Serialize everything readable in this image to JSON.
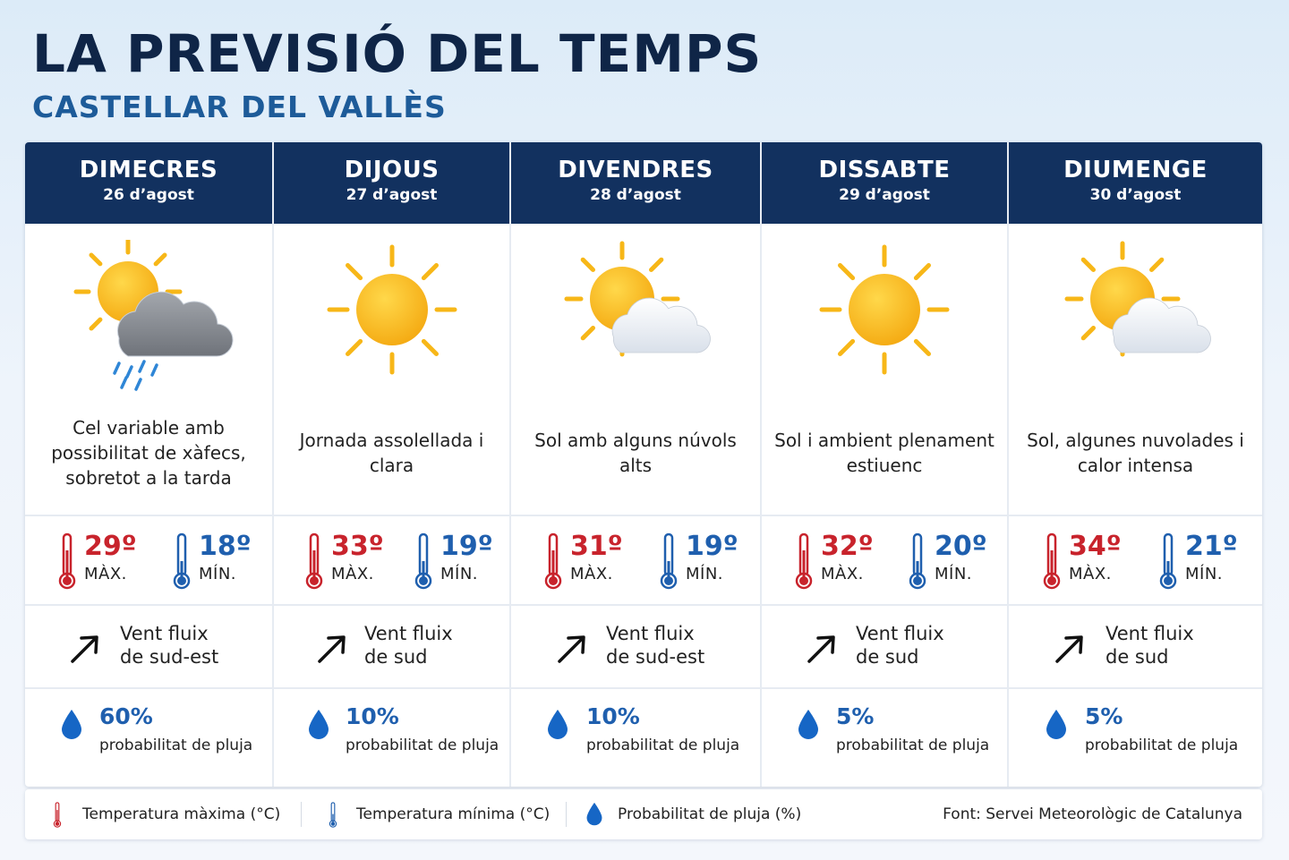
{
  "header": {
    "title": "LA PREVISIÓ DEL TEMPS",
    "subtitle": "CASTELLAR DEL VALLÈS"
  },
  "colors": {
    "header_bg": "#12315f",
    "max_temp": "#c8232c",
    "min_temp": "#1f5fae",
    "rain": "#1f5fae",
    "sun": "#f7b718",
    "cloud_dark": "#8c9097",
    "cloud_light": "#ecf0f5"
  },
  "days": [
    {
      "day": "DIMECRES",
      "date": "26 d’agost",
      "icon": "sun-behind-rain-cloud-icon",
      "description": "Cel variable amb possibilitat de xàfecs, sobretot a la tarda",
      "max": "29º",
      "max_label": "MÀX.",
      "min": "18º",
      "min_label": "MÍN.",
      "wind_line1": "Vent fluix",
      "wind_line2": "de sud-est",
      "rain": "60%",
      "rain_label": "probabilitat de pluja"
    },
    {
      "day": "DIJOUS",
      "date": "27 d’agost",
      "icon": "sun-icon",
      "description": "Jornada assolellada i clara",
      "max": "33º",
      "max_label": "MÀX.",
      "min": "19º",
      "min_label": "MÍN.",
      "wind_line1": "Vent fluix",
      "wind_line2": "de sud",
      "rain": "10%",
      "rain_label": "probabilitat de pluja"
    },
    {
      "day": "DIVENDRES",
      "date": "28 d’agost",
      "icon": "sun-behind-cloud-icon",
      "description": "Sol amb alguns núvols alts",
      "max": "31º",
      "max_label": "MÀX.",
      "min": "19º",
      "min_label": "MÍN.",
      "wind_line1": "Vent fluix",
      "wind_line2": "de sud-est",
      "rain": "10%",
      "rain_label": "probabilitat de pluja"
    },
    {
      "day": "DISSABTE",
      "date": "29 d’agost",
      "icon": "sun-icon",
      "description": "Sol i ambient plenament estiuenc",
      "max": "32º",
      "max_label": "MÀX.",
      "min": "20º",
      "min_label": "MÍN.",
      "wind_line1": "Vent fluix",
      "wind_line2": "de sud",
      "rain": "5%",
      "rain_label": "probabilitat de pluja"
    },
    {
      "day": "DIUMENGE",
      "date": "30 d’agost",
      "icon": "sun-behind-cloud-icon",
      "description": "Sol, algunes nuvolades i calor intensa",
      "max": "34º",
      "max_label": "MÀX.",
      "min": "21º",
      "min_label": "MÍN.",
      "wind_line1": "Vent fluix",
      "wind_line2": "de sud",
      "rain": "5%",
      "rain_label": "probabilitat de pluja"
    }
  ],
  "legend": {
    "max_label": "Temperatura màxima (°C)",
    "min_label": "Temperatura mínima (°C)",
    "rain_label": "Probabilitat de pluja (%)",
    "source": "Font: Servei Meteorològic de Catalunya"
  }
}
